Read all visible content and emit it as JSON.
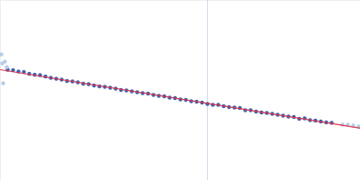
{
  "chart_data": {
    "type": "scatter",
    "xlim": [
      0,
      400
    ],
    "ylim": [
      0,
      200
    ],
    "xticks": [],
    "yticks": [],
    "tick_labels": false,
    "grid": false,
    "vlines": [
      230
    ],
    "vline_color": "#d3dbe8",
    "series": [
      {
        "type": "scatter",
        "marker": "circle",
        "color": "#3f63ad",
        "x": [
          8,
          14,
          20,
          26,
          32,
          38,
          44,
          50,
          56,
          62,
          68,
          74,
          80,
          86,
          92,
          98,
          104,
          110,
          116,
          122,
          128,
          134,
          140,
          146,
          152,
          158,
          164,
          170,
          176,
          182,
          188,
          194,
          200,
          206,
          212,
          218,
          224,
          230,
          236,
          242,
          248,
          254,
          260,
          266,
          272,
          278,
          284,
          290,
          296,
          302,
          308,
          314,
          320,
          326,
          332,
          338,
          344,
          350,
          356,
          362,
          368
        ],
        "values": [
          123,
          122.5,
          121,
          120.5,
          118.5,
          117.5,
          117,
          115.5,
          114,
          113,
          112,
          110.5,
          110,
          109,
          107.5,
          107,
          105.5,
          104.5,
          104,
          103,
          102,
          100.5,
          100,
          99,
          98,
          97,
          96.5,
          95,
          94,
          93.5,
          92,
          91.5,
          90,
          89.5,
          88,
          87.5,
          86.5,
          85,
          84,
          84,
          82.5,
          81.5,
          81,
          80.5,
          78,
          78,
          76.5,
          75.5,
          75,
          74,
          73,
          72,
          71,
          70.5,
          68.5,
          69,
          67,
          66.5,
          65.5,
          64.5,
          64
        ]
      },
      {
        "type": "scatter",
        "marker": "circle",
        "color": "#b8cce8",
        "x": [
          1,
          2,
          3,
          5,
          7,
          380,
          386,
          392,
          398
        ],
        "values": [
          140,
          130,
          108,
          132,
          126,
          62,
          62,
          61,
          60
        ]
      },
      {
        "type": "line",
        "line_style": "solid",
        "color": "#d9344a",
        "x": [
          0,
          400
        ],
        "values": [
          123,
          58
        ]
      }
    ]
  }
}
